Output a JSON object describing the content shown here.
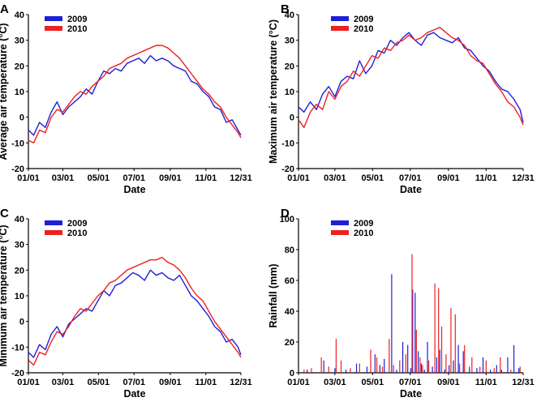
{
  "chart_data": [
    {
      "panel": "A",
      "type": "line",
      "ylabel": "Average air temperature (°C)",
      "xlabel": "Date",
      "ylim": [
        -20,
        40
      ],
      "yticks": [
        -20,
        -10,
        0,
        10,
        20,
        30,
        40
      ],
      "xtick_labels": [
        "01/01",
        "03/01",
        "05/01",
        "07/01",
        "09/01",
        "11/01",
        "12/31"
      ],
      "x_unit": "day-of-year",
      "series": [
        {
          "name": "2009",
          "color": "#1f1fd6",
          "x": [
            1,
            10,
            20,
            30,
            40,
            50,
            60,
            70,
            80,
            90,
            100,
            110,
            120,
            130,
            140,
            150,
            160,
            170,
            180,
            190,
            200,
            210,
            220,
            230,
            240,
            250,
            260,
            270,
            280,
            290,
            300,
            310,
            320,
            330,
            340,
            350,
            360,
            365
          ],
          "y": [
            -5,
            -7,
            -2,
            -4,
            2,
            6,
            1,
            4,
            6,
            8,
            11,
            9,
            14,
            18,
            17,
            19,
            18,
            21,
            22,
            23,
            21,
            24,
            22,
            23,
            22,
            20,
            19,
            18,
            14,
            13,
            10,
            8,
            4,
            3,
            -2,
            -1,
            -5,
            -7
          ]
        },
        {
          "name": "2010",
          "color": "#ee2020",
          "x": [
            1,
            10,
            20,
            30,
            40,
            50,
            60,
            70,
            80,
            90,
            100,
            110,
            120,
            130,
            140,
            150,
            160,
            170,
            180,
            190,
            200,
            210,
            220,
            230,
            240,
            250,
            260,
            270,
            280,
            290,
            300,
            310,
            320,
            330,
            340,
            350,
            360,
            365
          ],
          "y": [
            -9,
            -10,
            -5,
            -6,
            0,
            3,
            2,
            5,
            8,
            10,
            9,
            12,
            14,
            16,
            19,
            20,
            21,
            23,
            24,
            25,
            26,
            27,
            28,
            28,
            27,
            25,
            23,
            20,
            17,
            14,
            11,
            9,
            6,
            4,
            0,
            -3,
            -6,
            -8
          ]
        }
      ]
    },
    {
      "panel": "B",
      "type": "line",
      "ylabel": "Maximum air temperature (°C)",
      "xlabel": "Date",
      "ylim": [
        -20,
        40
      ],
      "yticks": [
        -20,
        -10,
        0,
        10,
        20,
        30,
        40
      ],
      "xtick_labels": [
        "01/01",
        "03/01",
        "05/01",
        "07/01",
        "09/01",
        "11/01",
        "12/31"
      ],
      "x_unit": "day-of-year",
      "series": [
        {
          "name": "2009",
          "color": "#1f1fd6",
          "x": [
            1,
            10,
            20,
            30,
            40,
            50,
            60,
            70,
            80,
            90,
            100,
            110,
            120,
            130,
            140,
            150,
            160,
            170,
            180,
            190,
            200,
            210,
            220,
            230,
            240,
            250,
            260,
            270,
            280,
            290,
            300,
            310,
            320,
            330,
            340,
            350,
            360,
            365
          ],
          "y": [
            4,
            2,
            6,
            3,
            9,
            12,
            8,
            14,
            16,
            15,
            22,
            17,
            20,
            26,
            25,
            30,
            28,
            31,
            33,
            30,
            28,
            32,
            33,
            31,
            30,
            29,
            31,
            27,
            26,
            23,
            20,
            18,
            14,
            11,
            10,
            7,
            3,
            -2
          ]
        },
        {
          "name": "2010",
          "color": "#ee2020",
          "x": [
            1,
            10,
            20,
            30,
            40,
            50,
            60,
            70,
            80,
            90,
            100,
            110,
            120,
            130,
            140,
            150,
            160,
            170,
            180,
            190,
            200,
            210,
            220,
            230,
            240,
            250,
            260,
            270,
            280,
            290,
            300,
            310,
            320,
            330,
            340,
            350,
            360,
            365
          ],
          "y": [
            -1,
            -4,
            2,
            5,
            3,
            10,
            7,
            12,
            14,
            18,
            16,
            20,
            24,
            23,
            27,
            26,
            29,
            30,
            32,
            30,
            31,
            33,
            34,
            35,
            33,
            31,
            30,
            28,
            24,
            22,
            21,
            17,
            13,
            10,
            6,
            4,
            0,
            -3
          ]
        }
      ]
    },
    {
      "panel": "C",
      "type": "line",
      "ylabel": "Minimum air temperature (°C)",
      "xlabel": "Date",
      "ylim": [
        -20,
        40
      ],
      "yticks": [
        -20,
        -10,
        0,
        10,
        20,
        30,
        40
      ],
      "xtick_labels": [
        "01/01",
        "03/01",
        "05/01",
        "07/01",
        "09/01",
        "11/01",
        "12/31"
      ],
      "x_unit": "day-of-year",
      "series": [
        {
          "name": "2009",
          "color": "#1f1fd6",
          "x": [
            1,
            10,
            20,
            30,
            40,
            50,
            60,
            70,
            80,
            90,
            100,
            110,
            120,
            130,
            140,
            150,
            160,
            170,
            180,
            190,
            200,
            210,
            220,
            230,
            240,
            250,
            260,
            270,
            280,
            290,
            300,
            310,
            320,
            330,
            340,
            350,
            360,
            365
          ],
          "y": [
            -12,
            -14,
            -9,
            -11,
            -5,
            -2,
            -6,
            -1,
            1,
            3,
            5,
            4,
            8,
            12,
            10,
            14,
            15,
            17,
            19,
            18,
            16,
            20,
            18,
            19,
            17,
            16,
            18,
            14,
            10,
            8,
            5,
            2,
            -2,
            -4,
            -8,
            -7,
            -10,
            -13
          ]
        },
        {
          "name": "2010",
          "color": "#ee2020",
          "x": [
            1,
            10,
            20,
            30,
            40,
            50,
            60,
            70,
            80,
            90,
            100,
            110,
            120,
            130,
            140,
            150,
            160,
            170,
            180,
            190,
            200,
            210,
            220,
            230,
            240,
            250,
            260,
            270,
            280,
            290,
            300,
            310,
            320,
            330,
            340,
            350,
            360,
            365
          ],
          "y": [
            -15,
            -17,
            -12,
            -13,
            -8,
            -4,
            -5,
            -2,
            2,
            5,
            4,
            7,
            10,
            12,
            15,
            16,
            18,
            20,
            21,
            22,
            23,
            24,
            24,
            25,
            23,
            22,
            20,
            17,
            13,
            10,
            8,
            4,
            0,
            -3,
            -6,
            -9,
            -12,
            -14
          ]
        }
      ]
    },
    {
      "panel": "D",
      "type": "bar",
      "ylabel": "Rainfall (mm)",
      "xlabel": "Date",
      "ylim": [
        0,
        100
      ],
      "yticks": [
        0,
        20,
        40,
        60,
        80,
        100
      ],
      "xtick_labels": [
        "01/01",
        "03/01",
        "05/01",
        "07/01",
        "09/01",
        "11/01",
        "12/31"
      ],
      "x_unit": "day-of-year",
      "series": [
        {
          "name": "2009",
          "color": "#1f1fd6",
          "x": [
            15,
            42,
            60,
            78,
            95,
            112,
            125,
            133,
            140,
            152,
            160,
            170,
            178,
            183,
            186,
            190,
            195,
            200,
            205,
            210,
            218,
            225,
            230,
            238,
            245,
            252,
            260,
            268,
            278,
            290,
            300,
            312,
            322,
            330,
            340,
            350,
            358
          ],
          "y": [
            2,
            8,
            3,
            2,
            6,
            4,
            12,
            5,
            9,
            64,
            2,
            20,
            18,
            3,
            54,
            52,
            14,
            6,
            2,
            20,
            4,
            10,
            15,
            2,
            5,
            8,
            18,
            14,
            4,
            3,
            10,
            2,
            5,
            2,
            10,
            18,
            3
          ]
        },
        {
          "name": "2010",
          "color": "#ee2020",
          "x": [
            10,
            22,
            38,
            50,
            62,
            70,
            85,
            100,
            118,
            128,
            137,
            148,
            155,
            165,
            175,
            185,
            192,
            198,
            202,
            212,
            222,
            228,
            233,
            240,
            248,
            255,
            262,
            270,
            282,
            295,
            305,
            318,
            328,
            345,
            360
          ],
          "y": [
            2,
            3,
            10,
            4,
            22,
            8,
            3,
            6,
            15,
            10,
            4,
            22,
            5,
            8,
            12,
            77,
            28,
            10,
            5,
            8,
            58,
            55,
            30,
            12,
            42,
            38,
            6,
            18,
            10,
            4,
            8,
            3,
            10,
            2,
            4
          ]
        }
      ]
    }
  ]
}
